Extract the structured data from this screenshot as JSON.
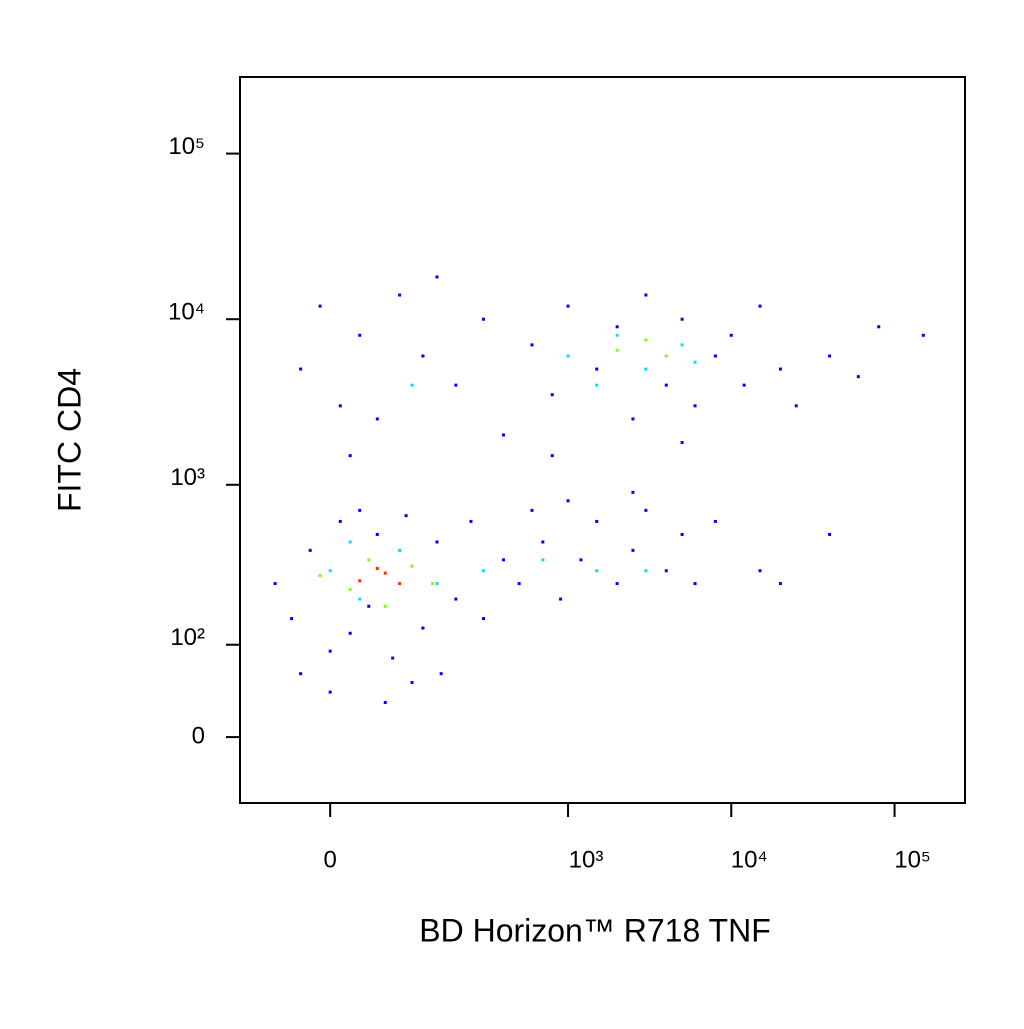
{
  "chart_data": {
    "type": "scatter",
    "xlabel": "BD Horizon™ R718 TNF",
    "ylabel": "FITC CD4",
    "xscale": "biexponential",
    "yscale": "biexponential",
    "xlim": [
      -115,
      270000
    ],
    "ylim": [
      -63,
      290000
    ],
    "xticks": [
      0,
      {
        "value": 1000,
        "label": "10³"
      },
      {
        "value": 10000,
        "label": "10⁴"
      },
      {
        "value": 100000,
        "label": "10⁵"
      }
    ],
    "yticks": [
      0,
      {
        "value": 100,
        "label": "10²"
      },
      {
        "value": 1000,
        "label": "10³"
      },
      {
        "value": 10000,
        "label": "10⁴"
      },
      {
        "value": 100000,
        "label": "10⁵"
      }
    ],
    "series": [
      {
        "color": "#0000ff",
        "x": [
          -60,
          -40,
          -20,
          0,
          10,
          20,
          30,
          40,
          50,
          70,
          90,
          120,
          150,
          200,
          250,
          300,
          400,
          500,
          700,
          900,
          1200,
          1500,
          2000,
          2500,
          3000,
          4000,
          5000,
          6000,
          8000,
          15000,
          20000,
          40000,
          -30,
          0,
          60,
          100,
          160,
          600,
          1000,
          2500,
          -30,
          -10,
          10,
          30,
          50,
          80,
          120,
          200,
          300,
          400,
          600,
          800,
          1000,
          1500,
          2000,
          2500,
          3000,
          4000,
          5000,
          6000,
          8000,
          10000,
          12000,
          15000,
          20000,
          25000,
          40000,
          60000,
          80000,
          150000,
          5000,
          800,
          20,
          150
        ],
        "y": [
          250,
          150,
          400,
          90,
          600,
          120,
          700,
          180,
          500,
          80,
          650,
          130,
          450,
          200,
          600,
          150,
          350,
          250,
          450,
          200,
          350,
          600,
          250,
          400,
          700,
          300,
          500,
          250,
          600,
          300,
          250,
          500,
          60,
          40,
          30,
          50,
          60,
          700,
          800,
          900,
          5000,
          12000,
          3000,
          8000,
          2500,
          14000,
          6000,
          4000,
          10000,
          2000,
          7000,
          3500,
          12000,
          5000,
          9000,
          2500,
          14000,
          4000,
          10000,
          3000,
          6000,
          8000,
          4000,
          12000,
          5000,
          3000,
          6000,
          4500,
          9000,
          8000,
          1800,
          1500,
          1500,
          18000
        ]
      },
      {
        "color": "#00e0ff",
        "x": [
          0,
          30,
          80,
          150,
          300,
          700,
          1500,
          20,
          1000,
          2000,
          3000,
          5000,
          1500,
          6000,
          100,
          3000
        ],
        "y": [
          300,
          200,
          400,
          250,
          300,
          350,
          300,
          450,
          6000,
          8000,
          5000,
          7000,
          4000,
          5500,
          4000,
          300
        ]
      },
      {
        "color": "#7fff00",
        "x": [
          -10,
          20,
          40,
          60,
          100,
          140,
          2000,
          4000,
          3000
        ],
        "y": [
          280,
          230,
          350,
          180,
          320,
          250,
          6500,
          6000,
          7500
        ]
      },
      {
        "color": "#ff3000",
        "x": [
          30,
          60,
          80,
          50
        ],
        "y": [
          260,
          290,
          250,
          310
        ]
      }
    ]
  }
}
